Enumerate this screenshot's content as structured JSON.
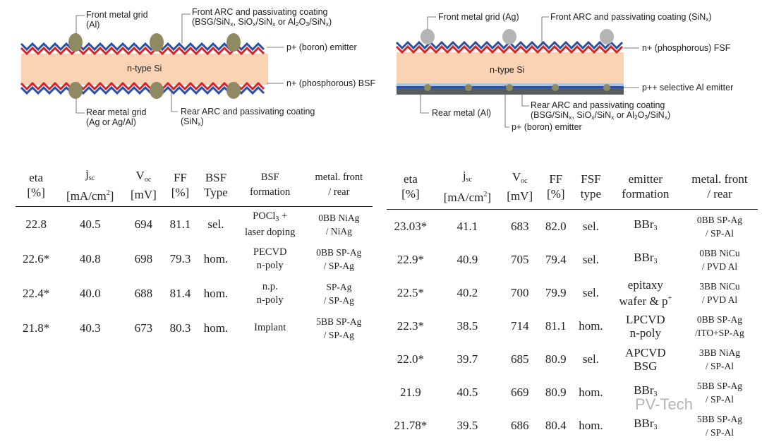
{
  "diagram_left": {
    "bulk_label": "n-type Si",
    "front_grid": [
      "Front metal grid",
      "(Al)"
    ],
    "front_arc": [
      "Front ARC and passivating coating",
      "(BSG/SiNx, SiOx/SiNx or Al2O3/SiNx)"
    ],
    "emitter": "p+ (boron) emitter",
    "bsf": "n+ (phosphorous) BSF",
    "rear_grid": [
      "Rear metal grid",
      "(Ag or Ag/Al)"
    ],
    "rear_arc": [
      "Rear ARC and passivating coating",
      "(SiNx)"
    ]
  },
  "diagram_right": {
    "bulk_label": "n-type Si",
    "front_grid": "Front metal grid (Ag)",
    "front_arc": "Front ARC and passivating coating (SiNx)",
    "fsf": "n+ (phosphorous) FSF",
    "al_emitter": "p++ selective Al emitter",
    "rear_metal": "Rear metal (Al)",
    "rear_arc": [
      "Rear ARC and passivating coating",
      "(BSG/SiNx, SiOx/SiNx or Al2O3/SiNx)"
    ],
    "emitter": "p+ (boron) emitter"
  },
  "table_left": {
    "headers": [
      [
        "eta",
        "[%]"
      ],
      [
        "jsc",
        "[mA/cm2]"
      ],
      [
        "Voc",
        "[mV]"
      ],
      [
        "FF",
        "[%]"
      ],
      [
        "BSF",
        "Type"
      ],
      [
        "BSF",
        "formation"
      ],
      [
        "metal. front",
        "/ rear"
      ]
    ],
    "rows": [
      [
        "22.8",
        "40.5",
        "694",
        "81.1",
        "sel.",
        [
          "POCl3 +",
          "laser doping"
        ],
        [
          "0BB NiAg",
          "/ NiAg"
        ]
      ],
      [
        "22.6*",
        "40.8",
        "698",
        "79.3",
        "hom.",
        [
          "PECVD",
          "n-poly"
        ],
        [
          "0BB SP-Ag",
          "/ SP-Ag"
        ]
      ],
      [
        "22.4*",
        "40.0",
        "688",
        "81.4",
        "hom.",
        [
          "n.p.",
          "n-poly"
        ],
        [
          "SP-Ag",
          "/ SP-Ag"
        ]
      ],
      [
        "21.8*",
        "40.3",
        "673",
        "80.3",
        "hom.",
        [
          "Implant",
          ""
        ],
        [
          "5BB SP-Ag",
          "/ SP-Ag"
        ]
      ]
    ]
  },
  "table_right": {
    "headers": [
      [
        "eta",
        "[%]"
      ],
      [
        "jsc",
        "[mA/cm2]"
      ],
      [
        "Voc",
        "[mV]"
      ],
      [
        "FF",
        "[%]"
      ],
      [
        "FSF",
        "type"
      ],
      [
        "emitter",
        "formation"
      ],
      [
        "metal. front",
        "/ rear"
      ]
    ],
    "rows": [
      [
        "23.03*",
        "41.1",
        "683",
        "82.0",
        "sel.",
        [
          "BBr3",
          ""
        ],
        [
          "0BB SP-Ag",
          "/ SP-Al"
        ]
      ],
      [
        "22.9*",
        "40.9",
        "705",
        "79.4",
        "sel.",
        [
          "BBr3",
          ""
        ],
        [
          "0BB NiCu",
          "/ PVD Al"
        ]
      ],
      [
        "22.5*",
        "40.2",
        "700",
        "79.9",
        "sel.",
        [
          "epitaxy",
          "wafer & p+"
        ],
        [
          "3BB NiCu",
          "/ PVD Al"
        ]
      ],
      [
        "22.3*",
        "38.5",
        "714",
        "81.1",
        "hom.",
        [
          "LPCVD",
          "n-poly"
        ],
        [
          "0BB SP-Ag",
          "/ITO+SP-Ag"
        ]
      ],
      [
        "22.0*",
        "39.7",
        "685",
        "80.9",
        "sel.",
        [
          "APCVD",
          "BSG"
        ],
        [
          "3BB NiAg",
          "/ SP-Al"
        ]
      ],
      [
        "21.9",
        "40.5",
        "669",
        "80.9",
        "hom.",
        [
          "BBr3",
          ""
        ],
        [
          "5BB SP-Ag",
          "/ SP-Al"
        ]
      ],
      [
        "21.78*",
        "39.5",
        "686",
        "80.4",
        "hom.",
        [
          "BBr3",
          ""
        ],
        [
          "5BB SP-Ag",
          "/ SP-Al"
        ]
      ]
    ]
  },
  "watermark": "PV-Tech",
  "colors": {
    "bulk": "#fad3b5",
    "blue": "#2b4fa3",
    "red": "#d8222a",
    "grey_metal": "#b4b4b4",
    "olive_metal": "#8f8a62",
    "rear_grey": "#5a5d60",
    "rear_blue": "#aac8e0"
  }
}
